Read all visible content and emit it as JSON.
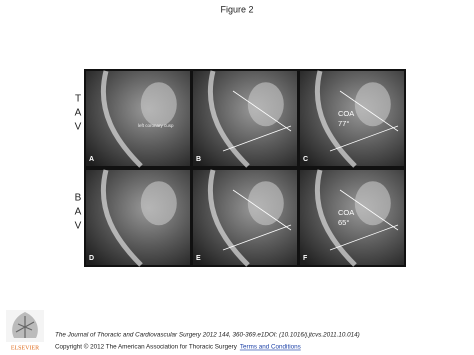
{
  "header": {
    "title": "Figure 2"
  },
  "rows": [
    {
      "label": [
        "T",
        "A",
        "V"
      ]
    },
    {
      "label": [
        "B",
        "A",
        "V"
      ]
    }
  ],
  "panels": [
    {
      "letter": "A",
      "annotations": [
        "left coronary cusp"
      ]
    },
    {
      "letter": "B",
      "annotations": []
    },
    {
      "letter": "C",
      "annotations": [
        "COA",
        "77°"
      ]
    },
    {
      "letter": "D",
      "annotations": []
    },
    {
      "letter": "E",
      "annotations": []
    },
    {
      "letter": "F",
      "annotations": [
        "COA",
        "65°"
      ]
    }
  ],
  "footer": {
    "publisher": "ELSEVIER",
    "citation": "The Journal of Thoracic and Cardiovascular Surgery 2012 144, 360-369.e1DOI: (10.1016/j.jtcvs.2011.10.014)",
    "copyright": "Copyright © 2012 The American Association for Thoracic Surgery",
    "link": "Terms and Conditions"
  }
}
